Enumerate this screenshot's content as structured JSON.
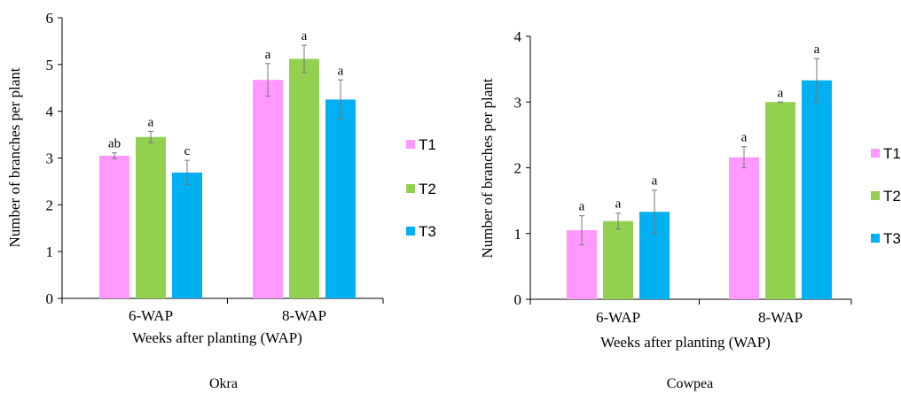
{
  "legend": [
    {
      "label": "T1",
      "color": "#FF99FF"
    },
    {
      "label": "T2",
      "color": "#92D050"
    },
    {
      "label": "T3",
      "color": "#00B0F0"
    }
  ],
  "chart_data": [
    {
      "type": "bar",
      "caption": "Okra",
      "xlabel": "Weeks after planting (WAP)",
      "ylabel": "Number of branches per plant",
      "ylim": [
        0,
        6
      ],
      "yticks": [
        0,
        1,
        2,
        3,
        4,
        5,
        6
      ],
      "categories": [
        "6-WAP",
        "8-WAP"
      ],
      "series": [
        {
          "name": "T1",
          "color": "#FF99FF",
          "values": [
            3.05,
            4.67
          ],
          "errors": [
            0.06,
            0.35
          ],
          "labels": [
            "ab",
            "a"
          ]
        },
        {
          "name": "T2",
          "color": "#92D050",
          "values": [
            3.45,
            5.12
          ],
          "errors": [
            0.12,
            0.29
          ],
          "labels": [
            "a",
            "a"
          ]
        },
        {
          "name": "T3",
          "color": "#00B0F0",
          "values": [
            2.69,
            4.25
          ],
          "errors": [
            0.26,
            0.42
          ],
          "labels": [
            "c",
            "a"
          ]
        }
      ],
      "grid": false,
      "legend_position": "right"
    },
    {
      "type": "bar",
      "caption": "Cowpea",
      "xlabel": "Weeks after planting (WAP)",
      "ylabel": "Number of branches per plant",
      "ylim": [
        0,
        4
      ],
      "yticks": [
        0,
        1,
        2,
        3,
        4
      ],
      "categories": [
        "6-WAP",
        "8-WAP"
      ],
      "series": [
        {
          "name": "T1",
          "color": "#FF99FF",
          "values": [
            1.05,
            2.16
          ],
          "errors": [
            0.22,
            0.16
          ],
          "labels": [
            "a",
            "a"
          ]
        },
        {
          "name": "T2",
          "color": "#92D050",
          "values": [
            1.19,
            3.0
          ],
          "errors": [
            0.12,
            0.0
          ],
          "labels": [
            "a",
            "a"
          ]
        },
        {
          "name": "T3",
          "color": "#00B0F0",
          "values": [
            1.33,
            3.33
          ],
          "errors": [
            0.33,
            0.33
          ],
          "labels": [
            "a",
            "a"
          ]
        }
      ],
      "grid": false,
      "legend_position": "right"
    }
  ]
}
